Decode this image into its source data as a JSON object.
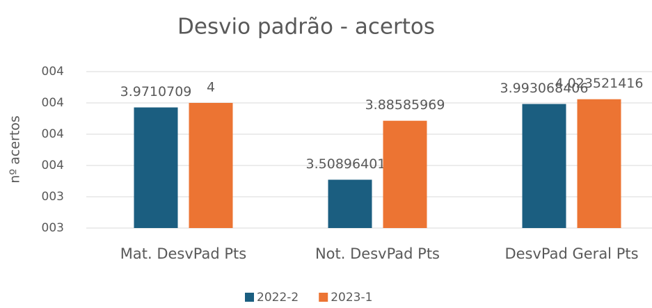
{
  "chart_data": {
    "type": "bar",
    "title": "Desvio padrão - acertos",
    "y_label": "nº acertos",
    "categories": [
      "Mat. DesvPad Pts",
      "Not. DesvPad Pts",
      "DesvPad Geral Pts"
    ],
    "series": [
      {
        "name": "2022-2",
        "color": "#1b5e80",
        "values": [
          3.9710709,
          3.508964017,
          3.993068406
        ]
      },
      {
        "name": "2023-1",
        "color": "#ec7433",
        "values": [
          4,
          3.88585969,
          4.023521416
        ]
      }
    ],
    "ylim": [
      3.2,
      4.2
    ],
    "yticks": [
      {
        "value": 3.2,
        "label": "003"
      },
      {
        "value": 3.4,
        "label": "003"
      },
      {
        "value": 3.6,
        "label": "004"
      },
      {
        "value": 3.8,
        "label": "004"
      },
      {
        "value": 4.0,
        "label": "004"
      },
      {
        "value": 4.2,
        "label": "004"
      }
    ],
    "grid": true,
    "legend": "bottom"
  }
}
